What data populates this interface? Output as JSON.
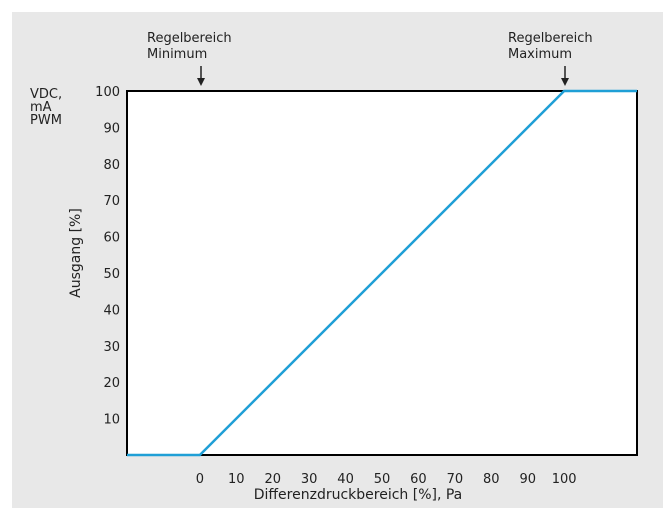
{
  "chart_data": {
    "type": "line",
    "x_tick_labels": [
      "0",
      "10",
      "20",
      "30",
      "40",
      "50",
      "60",
      "70",
      "80",
      "90",
      "100"
    ],
    "y_tick_labels": [
      "10",
      "20",
      "30",
      "40",
      "50",
      "60",
      "70",
      "80",
      "90",
      "100"
    ],
    "xlabel": "Differenzdruckbereich [%], Pa",
    "ylabel": "Ausgang  [%]",
    "y_unit_label": [
      "VDC,",
      "mA",
      "PWM"
    ],
    "xlim": [
      -20,
      120
    ],
    "ylim": [
      0,
      100
    ],
    "grid": false,
    "series": [
      {
        "x": [
          -20,
          0,
          100,
          120
        ],
        "y": [
          0,
          0,
          100,
          100
        ],
        "color": "#1f9fd6"
      }
    ],
    "annotations": [
      {
        "lines": [
          "Regelbereich",
          "Minimum"
        ],
        "x": 0
      },
      {
        "lines": [
          "Regelbereich",
          "Maximum"
        ],
        "x": 100
      }
    ],
    "colors": {
      "background": "#e8e8e8",
      "frame": "#000000",
      "line": "#1f9fd6"
    }
  }
}
